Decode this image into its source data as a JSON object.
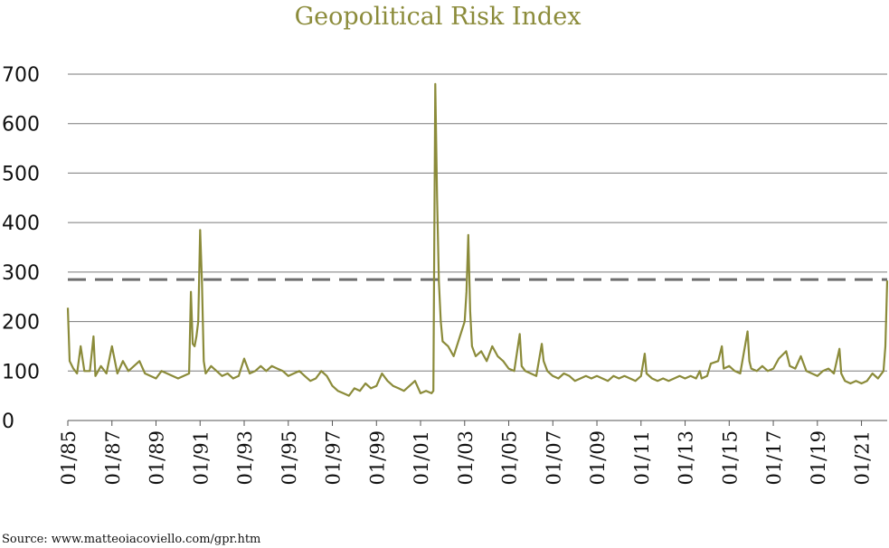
{
  "chart_data": {
    "type": "line",
    "title": "Geopolitical Risk Index",
    "source": "Source: www.matteoiacoviello.com/gpr.htm",
    "xlabel": "",
    "ylabel": "",
    "ylim": [
      0,
      700
    ],
    "yticks": [
      0,
      100,
      200,
      300,
      400,
      500,
      600,
      700
    ],
    "xlim": [
      "1985-01",
      "2022-03"
    ],
    "xticks": [
      "01/85",
      "01/87",
      "01/89",
      "01/91",
      "01/93",
      "01/95",
      "01/97",
      "01/99",
      "01/01",
      "01/03",
      "01/05",
      "01/07",
      "01/09",
      "01/11",
      "01/13",
      "01/15",
      "01/17",
      "01/19",
      "01/21"
    ],
    "grid": true,
    "legend": "none",
    "color": "#8b8b3a",
    "threshold_line": {
      "y": 285,
      "style": "dashed",
      "color": "#6e6e6e"
    },
    "series": [
      {
        "points": [
          [
            "1985-01",
            228
          ],
          [
            "1985-02",
            120
          ],
          [
            "1985-04",
            105
          ],
          [
            "1985-06",
            95
          ],
          [
            "1985-08",
            150
          ],
          [
            "1985-10",
            100
          ],
          [
            "1986-01",
            100
          ],
          [
            "1986-03",
            170
          ],
          [
            "1986-04",
            90
          ],
          [
            "1986-07",
            110
          ],
          [
            "1986-10",
            95
          ],
          [
            "1987-01",
            150
          ],
          [
            "1987-04",
            95
          ],
          [
            "1987-07",
            120
          ],
          [
            "1987-10",
            100
          ],
          [
            "1988-01",
            110
          ],
          [
            "1988-04",
            120
          ],
          [
            "1988-07",
            95
          ],
          [
            "1988-10",
            90
          ],
          [
            "1989-01",
            85
          ],
          [
            "1989-04",
            100
          ],
          [
            "1989-07",
            95
          ],
          [
            "1989-10",
            90
          ],
          [
            "1990-01",
            85
          ],
          [
            "1990-04",
            90
          ],
          [
            "1990-07",
            95
          ],
          [
            "1990-08",
            260
          ],
          [
            "1990-09",
            155
          ],
          [
            "1990-10",
            150
          ],
          [
            "1990-11",
            170
          ],
          [
            "1990-12",
            200
          ],
          [
            "1991-01",
            385
          ],
          [
            "1991-02",
            280
          ],
          [
            "1991-03",
            120
          ],
          [
            "1991-04",
            95
          ],
          [
            "1991-07",
            110
          ],
          [
            "1991-10",
            100
          ],
          [
            "1992-01",
            90
          ],
          [
            "1992-04",
            95
          ],
          [
            "1992-07",
            85
          ],
          [
            "1992-10",
            90
          ],
          [
            "1993-01",
            125
          ],
          [
            "1993-04",
            95
          ],
          [
            "1993-07",
            100
          ],
          [
            "1993-10",
            110
          ],
          [
            "1994-01",
            100
          ],
          [
            "1994-04",
            110
          ],
          [
            "1994-07",
            105
          ],
          [
            "1994-10",
            100
          ],
          [
            "1995-01",
            90
          ],
          [
            "1995-04",
            95
          ],
          [
            "1995-07",
            100
          ],
          [
            "1995-10",
            90
          ],
          [
            "1996-01",
            80
          ],
          [
            "1996-04",
            85
          ],
          [
            "1996-07",
            100
          ],
          [
            "1996-10",
            90
          ],
          [
            "1997-01",
            70
          ],
          [
            "1997-04",
            60
          ],
          [
            "1997-07",
            55
          ],
          [
            "1997-10",
            50
          ],
          [
            "1998-01",
            65
          ],
          [
            "1998-04",
            60
          ],
          [
            "1998-07",
            75
          ],
          [
            "1998-10",
            65
          ],
          [
            "1999-01",
            70
          ],
          [
            "1999-04",
            95
          ],
          [
            "1999-07",
            80
          ],
          [
            "1999-10",
            70
          ],
          [
            "2000-01",
            65
          ],
          [
            "2000-04",
            60
          ],
          [
            "2000-07",
            70
          ],
          [
            "2000-10",
            80
          ],
          [
            "2001-01",
            55
          ],
          [
            "2001-04",
            60
          ],
          [
            "2001-07",
            55
          ],
          [
            "2001-08",
            60
          ],
          [
            "2001-09",
            680
          ],
          [
            "2001-10",
            450
          ],
          [
            "2001-11",
            280
          ],
          [
            "2001-12",
            200
          ],
          [
            "2002-01",
            160
          ],
          [
            "2002-04",
            150
          ],
          [
            "2002-07",
            130
          ],
          [
            "2002-10",
            165
          ],
          [
            "2003-01",
            200
          ],
          [
            "2003-02",
            260
          ],
          [
            "2003-03",
            375
          ],
          [
            "2003-04",
            220
          ],
          [
            "2003-05",
            150
          ],
          [
            "2003-07",
            130
          ],
          [
            "2003-10",
            140
          ],
          [
            "2004-01",
            120
          ],
          [
            "2004-04",
            150
          ],
          [
            "2004-07",
            130
          ],
          [
            "2004-10",
            120
          ],
          [
            "2005-01",
            105
          ],
          [
            "2005-04",
            100
          ],
          [
            "2005-07",
            175
          ],
          [
            "2005-08",
            110
          ],
          [
            "2005-10",
            100
          ],
          [
            "2006-01",
            95
          ],
          [
            "2006-04",
            90
          ],
          [
            "2006-07",
            155
          ],
          [
            "2006-08",
            120
          ],
          [
            "2006-10",
            100
          ],
          [
            "2007-01",
            90
          ],
          [
            "2007-04",
            85
          ],
          [
            "2007-07",
            95
          ],
          [
            "2007-10",
            90
          ],
          [
            "2008-01",
            80
          ],
          [
            "2008-04",
            85
          ],
          [
            "2008-07",
            90
          ],
          [
            "2008-10",
            85
          ],
          [
            "2009-01",
            90
          ],
          [
            "2009-04",
            85
          ],
          [
            "2009-07",
            80
          ],
          [
            "2009-10",
            90
          ],
          [
            "2010-01",
            85
          ],
          [
            "2010-04",
            90
          ],
          [
            "2010-07",
            85
          ],
          [
            "2010-10",
            80
          ],
          [
            "2011-01",
            90
          ],
          [
            "2011-03",
            135
          ],
          [
            "2011-04",
            95
          ],
          [
            "2011-07",
            85
          ],
          [
            "2011-10",
            80
          ],
          [
            "2012-01",
            85
          ],
          [
            "2012-04",
            80
          ],
          [
            "2012-07",
            85
          ],
          [
            "2012-10",
            90
          ],
          [
            "2013-01",
            85
          ],
          [
            "2013-04",
            90
          ],
          [
            "2013-07",
            85
          ],
          [
            "2013-09",
            100
          ],
          [
            "2013-10",
            85
          ],
          [
            "2014-01",
            90
          ],
          [
            "2014-03",
            115
          ],
          [
            "2014-07",
            120
          ],
          [
            "2014-09",
            150
          ],
          [
            "2014-10",
            105
          ],
          [
            "2015-01",
            110
          ],
          [
            "2015-04",
            100
          ],
          [
            "2015-07",
            95
          ],
          [
            "2015-11",
            180
          ],
          [
            "2015-12",
            120
          ],
          [
            "2016-01",
            105
          ],
          [
            "2016-04",
            100
          ],
          [
            "2016-07",
            110
          ],
          [
            "2016-10",
            100
          ],
          [
            "2017-01",
            105
          ],
          [
            "2017-04",
            125
          ],
          [
            "2017-08",
            140
          ],
          [
            "2017-10",
            110
          ],
          [
            "2018-01",
            105
          ],
          [
            "2018-04",
            130
          ],
          [
            "2018-07",
            100
          ],
          [
            "2018-10",
            95
          ],
          [
            "2019-01",
            90
          ],
          [
            "2019-04",
            100
          ],
          [
            "2019-07",
            105
          ],
          [
            "2019-10",
            95
          ],
          [
            "2020-01",
            145
          ],
          [
            "2020-02",
            95
          ],
          [
            "2020-04",
            80
          ],
          [
            "2020-07",
            75
          ],
          [
            "2020-10",
            80
          ],
          [
            "2021-01",
            75
          ],
          [
            "2021-04",
            80
          ],
          [
            "2021-07",
            95
          ],
          [
            "2021-10",
            85
          ],
          [
            "2022-01",
            100
          ],
          [
            "2022-02",
            150
          ],
          [
            "2022-03",
            283
          ]
        ]
      }
    ]
  }
}
